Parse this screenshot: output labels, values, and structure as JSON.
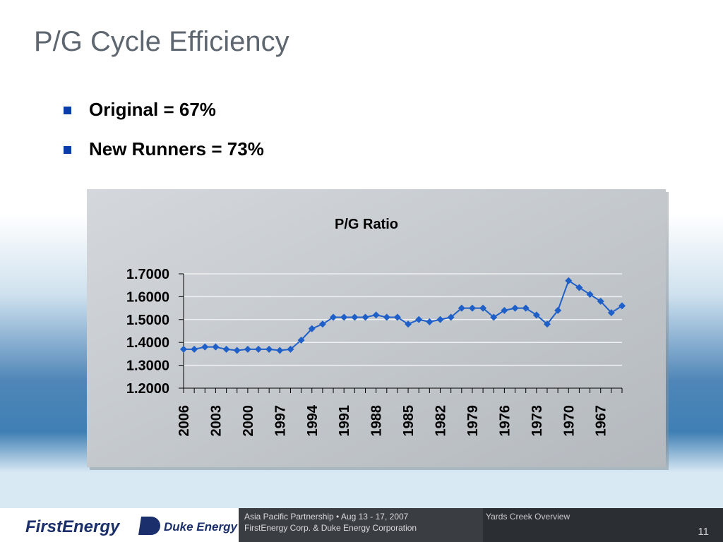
{
  "slide": {
    "title": "P/G Cycle Efficiency",
    "bullets": [
      "Original = 67%",
      "New Runners = 73%"
    ],
    "footer": {
      "logo_left": "FirstEnergy",
      "logo_right": "Duke Energy",
      "event": "Asia Pacific Partnership •  Aug 13 - 17, 2007",
      "companies": "FirstEnergy Corp. & Duke Energy Corporation",
      "section": "Yards Creek Overview",
      "page": "11"
    }
  },
  "chart_data": {
    "type": "line",
    "title": "P/G Ratio",
    "categories": [
      "2006",
      null,
      null,
      "2003",
      null,
      null,
      "2000",
      null,
      null,
      "1997",
      null,
      null,
      "1994",
      null,
      null,
      "1991",
      null,
      null,
      "1988",
      null,
      null,
      "1985",
      null,
      null,
      "1982",
      null,
      null,
      "1979",
      null,
      null,
      "1976",
      null,
      null,
      "1973",
      null,
      null,
      "1970",
      null,
      null,
      "1967",
      null,
      null
    ],
    "series": [
      {
        "name": "P/G Ratio",
        "color": "#1f5fc8",
        "values": [
          1.37,
          1.37,
          1.38,
          1.38,
          1.37,
          1.365,
          1.37,
          1.37,
          1.37,
          1.365,
          1.37,
          1.41,
          1.46,
          1.48,
          1.51,
          1.51,
          1.51,
          1.51,
          1.52,
          1.51,
          1.51,
          1.48,
          1.5,
          1.49,
          1.5,
          1.51,
          1.55,
          1.55,
          1.55,
          1.51,
          1.54,
          1.55,
          1.55,
          1.52,
          1.48,
          1.54,
          1.67,
          1.64,
          1.61,
          1.58,
          1.53,
          1.56
        ]
      }
    ],
    "ylim": [
      1.2,
      1.7
    ],
    "yticks": [
      {
        "value": 1.2,
        "label": "1.2000"
      },
      {
        "value": 1.3,
        "label": "1.3000"
      },
      {
        "value": 1.4,
        "label": "1.4000"
      },
      {
        "value": 1.5,
        "label": "1.5000"
      },
      {
        "value": 1.6,
        "label": "1.6000"
      },
      {
        "value": 1.7,
        "label": "1.7000"
      }
    ],
    "grid": true,
    "legend": false
  }
}
